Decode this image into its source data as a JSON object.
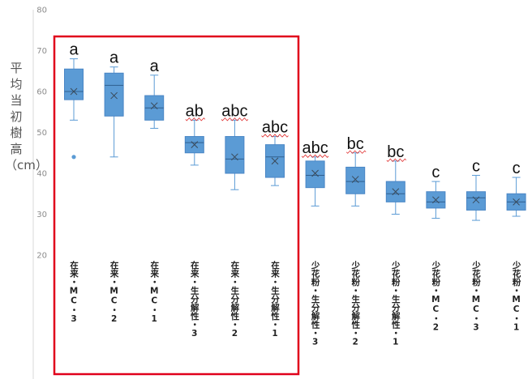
{
  "chart_data": {
    "type": "box",
    "ylabel": "平均当初樹高（cm）",
    "ylim": [
      20,
      80
    ],
    "yticks": [
      20,
      30,
      40,
      50,
      60,
      70,
      80
    ],
    "grid": false,
    "box_color": "#5b9bd5",
    "highlight_color": "#e0001b",
    "categories": [
      "在来・MC・3",
      "在来・MC・2",
      "在来・MC・1",
      "在来・生分解性・3",
      "在来・生分解性・2",
      "在来・生分解性・1",
      "少花粉・生分解性・3",
      "少花粉・生分解性・2",
      "少花粉・生分解性・1",
      "少花粉・MC・2",
      "少花粉・MC・3",
      "少花粉・MC・1"
    ],
    "groups": [
      "a",
      "a",
      "a",
      "ab",
      "abc",
      "abc",
      "abc",
      "bc",
      "bc",
      "c",
      "c",
      "c"
    ],
    "boxes": [
      {
        "min": 53,
        "q1": 58,
        "median": 60,
        "q3": 65.5,
        "max": 68,
        "mean": 60,
        "outliers": [
          44
        ]
      },
      {
        "min": 44,
        "q1": 54,
        "median": 61.5,
        "q3": 64.5,
        "max": 66,
        "mean": 59,
        "outliers": []
      },
      {
        "min": 51,
        "q1": 53,
        "median": 56,
        "q3": 59,
        "max": 64,
        "mean": 56.5,
        "outliers": []
      },
      {
        "min": 42,
        "q1": 45,
        "median": 47.5,
        "q3": 49,
        "max": 53,
        "mean": 47,
        "outliers": []
      },
      {
        "min": 36,
        "q1": 40,
        "median": 43.5,
        "q3": 49,
        "max": 53,
        "mean": 44,
        "outliers": []
      },
      {
        "min": 37,
        "q1": 39,
        "median": 44,
        "q3": 47,
        "max": 49,
        "mean": 43,
        "outliers": []
      },
      {
        "min": 32,
        "q1": 36.5,
        "median": 39.5,
        "q3": 43,
        "max": 44,
        "mean": 40,
        "outliers": []
      },
      {
        "min": 32,
        "q1": 35,
        "median": 38,
        "q3": 41.5,
        "max": 45,
        "mean": 38.5,
        "outliers": []
      },
      {
        "min": 30,
        "q1": 33,
        "median": 35,
        "q3": 38,
        "max": 43,
        "mean": 35.5,
        "outliers": []
      },
      {
        "min": 29,
        "q1": 31.5,
        "median": 33,
        "q3": 35.5,
        "max": 38,
        "mean": 33.5,
        "outliers": []
      },
      {
        "min": 28.5,
        "q1": 31,
        "median": 34,
        "q3": 35.5,
        "max": 39.5,
        "mean": 33.5,
        "outliers": []
      },
      {
        "min": 29.5,
        "q1": 31,
        "median": 33,
        "q3": 35,
        "max": 39,
        "mean": 33,
        "outliers": []
      }
    ]
  }
}
